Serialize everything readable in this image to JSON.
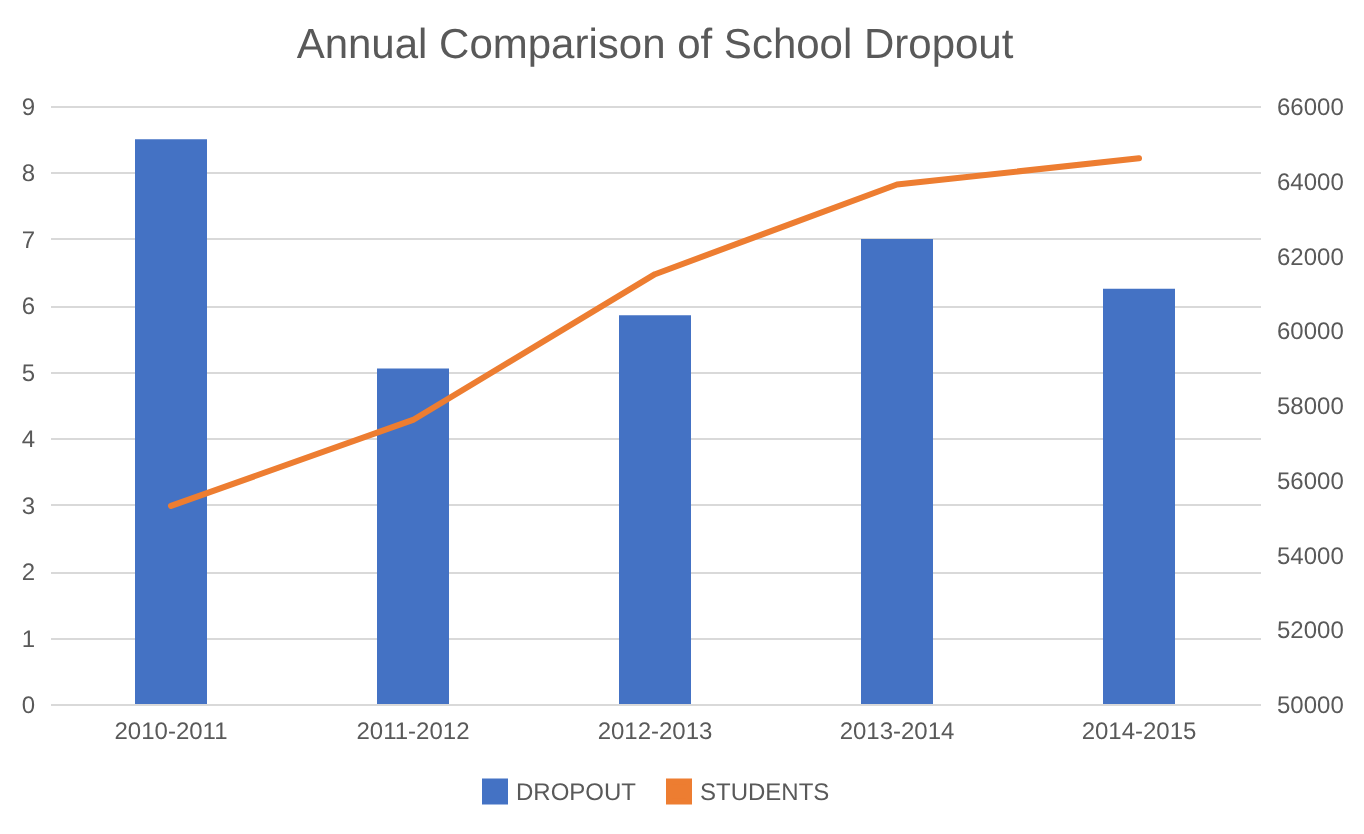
{
  "chart_data": {
    "type": "bar",
    "title": "Annual Comparison of School Dropout",
    "categories": [
      "2010-2011",
      "2011-2012",
      "2012-2013",
      "2013-2014",
      "2014-2015"
    ],
    "series": [
      {
        "name": "DROPOUT",
        "color": "#4472c4",
        "values": [
          8.5,
          5.05,
          5.85,
          7.0,
          6.25
        ]
      },
      {
        "name": "STUDENTS",
        "type": "line",
        "axis": "y2",
        "color": "#ed7d31",
        "values": [
          55300,
          57600,
          61500,
          63900,
          64600
        ]
      }
    ],
    "ylim": [
      0,
      9
    ],
    "yticks": [
      0,
      1,
      2,
      3,
      4,
      5,
      6,
      7,
      8,
      9
    ],
    "y2lim": [
      50000,
      66000
    ],
    "y2ticks": [
      50000,
      52000,
      54000,
      56000,
      58000,
      60000,
      62000,
      64000,
      66000
    ],
    "grid": "y",
    "legend": "bottom"
  }
}
